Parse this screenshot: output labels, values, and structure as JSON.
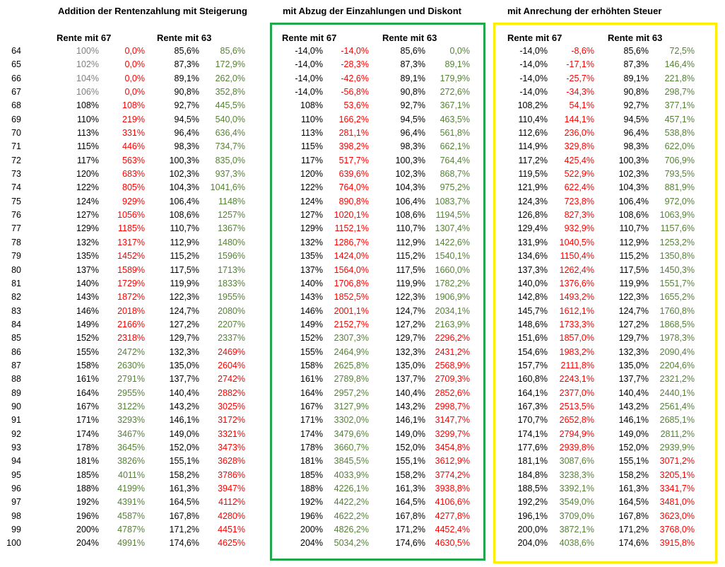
{
  "titles": {
    "section1": "Addition der Rentenzahlung mit Steigerung",
    "section2": "mit Abzug der Einzahlungen und Diskont",
    "section3": "mit Anrechung der erhöhten Steuer"
  },
  "headers": {
    "s1_r67": "Rente mit 67",
    "s1_r63": "Rente mit 63",
    "s2_r67": "Rente mit 67",
    "s2_r63": "Rente mit 63",
    "s3_r67": "Rente mit 67",
    "s3_r63": "Rente mit 63"
  },
  "colors": {
    "red": "#ff0000",
    "green": "#548235",
    "gray": "#808080",
    "black": "#000000",
    "greenBox": "#21a84a",
    "yellowBox": "#ffee00"
  },
  "rows": [
    [
      "64",
      "100%",
      "0,0%",
      "85,6%",
      "85,6%",
      "-14,0%",
      "-14,0%",
      "85,6%",
      "0,0%",
      "-14,0%",
      "-8,6%",
      "85,6%",
      "72,5%"
    ],
    [
      "65",
      "102%",
      "0,0%",
      "87,3%",
      "172,9%",
      "-14,0%",
      "-28,3%",
      "87,3%",
      "89,1%",
      "-14,0%",
      "-17,1%",
      "87,3%",
      "146,4%"
    ],
    [
      "66",
      "104%",
      "0,0%",
      "89,1%",
      "262,0%",
      "-14,0%",
      "-42,6%",
      "89,1%",
      "179,9%",
      "-14,0%",
      "-25,7%",
      "89,1%",
      "221,8%"
    ],
    [
      "67",
      "106%",
      "0,0%",
      "90,8%",
      "352,8%",
      "-14,0%",
      "-56,8%",
      "90,8%",
      "272,6%",
      "-14,0%",
      "-34,3%",
      "90,8%",
      "298,7%"
    ],
    [
      "68",
      "108%",
      "108%",
      "92,7%",
      "445,5%",
      "108%",
      "53,6%",
      "92,7%",
      "367,1%",
      "108,2%",
      "54,1%",
      "92,7%",
      "377,1%"
    ],
    [
      "69",
      "110%",
      "219%",
      "94,5%",
      "540,0%",
      "110%",
      "166,2%",
      "94,5%",
      "463,5%",
      "110,4%",
      "144,1%",
      "94,5%",
      "457,1%"
    ],
    [
      "70",
      "113%",
      "331%",
      "96,4%",
      "636,4%",
      "113%",
      "281,1%",
      "96,4%",
      "561,8%",
      "112,6%",
      "236,0%",
      "96,4%",
      "538,8%"
    ],
    [
      "71",
      "115%",
      "446%",
      "98,3%",
      "734,7%",
      "115%",
      "398,2%",
      "98,3%",
      "662,1%",
      "114,9%",
      "329,8%",
      "98,3%",
      "622,0%"
    ],
    [
      "72",
      "117%",
      "563%",
      "100,3%",
      "835,0%",
      "117%",
      "517,7%",
      "100,3%",
      "764,4%",
      "117,2%",
      "425,4%",
      "100,3%",
      "706,9%"
    ],
    [
      "73",
      "120%",
      "683%",
      "102,3%",
      "937,3%",
      "120%",
      "639,6%",
      "102,3%",
      "868,7%",
      "119,5%",
      "522,9%",
      "102,3%",
      "793,5%"
    ],
    [
      "74",
      "122%",
      "805%",
      "104,3%",
      "1041,6%",
      "122%",
      "764,0%",
      "104,3%",
      "975,2%",
      "121,9%",
      "622,4%",
      "104,3%",
      "881,9%"
    ],
    [
      "75",
      "124%",
      "929%",
      "106,4%",
      "1148%",
      "124%",
      "890,8%",
      "106,4%",
      "1083,7%",
      "124,3%",
      "723,8%",
      "106,4%",
      "972,0%"
    ],
    [
      "76",
      "127%",
      "1056%",
      "108,6%",
      "1257%",
      "127%",
      "1020,1%",
      "108,6%",
      "1194,5%",
      "126,8%",
      "827,3%",
      "108,6%",
      "1063,9%"
    ],
    [
      "77",
      "129%",
      "1185%",
      "110,7%",
      "1367%",
      "129%",
      "1152,1%",
      "110,7%",
      "1307,4%",
      "129,4%",
      "932,9%",
      "110,7%",
      "1157,6%"
    ],
    [
      "78",
      "132%",
      "1317%",
      "112,9%",
      "1480%",
      "132%",
      "1286,7%",
      "112,9%",
      "1422,6%",
      "131,9%",
      "1040,5%",
      "112,9%",
      "1253,2%"
    ],
    [
      "79",
      "135%",
      "1452%",
      "115,2%",
      "1596%",
      "135%",
      "1424,0%",
      "115,2%",
      "1540,1%",
      "134,6%",
      "1150,4%",
      "115,2%",
      "1350,8%"
    ],
    [
      "80",
      "137%",
      "1589%",
      "117,5%",
      "1713%",
      "137%",
      "1564,0%",
      "117,5%",
      "1660,0%",
      "137,3%",
      "1262,4%",
      "117,5%",
      "1450,3%"
    ],
    [
      "81",
      "140%",
      "1729%",
      "119,9%",
      "1833%",
      "140%",
      "1706,8%",
      "119,9%",
      "1782,2%",
      "140,0%",
      "1376,6%",
      "119,9%",
      "1551,7%"
    ],
    [
      "82",
      "143%",
      "1872%",
      "122,3%",
      "1955%",
      "143%",
      "1852,5%",
      "122,3%",
      "1906,9%",
      "142,8%",
      "1493,2%",
      "122,3%",
      "1655,2%"
    ],
    [
      "83",
      "146%",
      "2018%",
      "124,7%",
      "2080%",
      "146%",
      "2001,1%",
      "124,7%",
      "2034,1%",
      "145,7%",
      "1612,1%",
      "124,7%",
      "1760,8%"
    ],
    [
      "84",
      "149%",
      "2166%",
      "127,2%",
      "2207%",
      "149%",
      "2152,7%",
      "127,2%",
      "2163,9%",
      "148,6%",
      "1733,3%",
      "127,2%",
      "1868,5%"
    ],
    [
      "85",
      "152%",
      "2318%",
      "129,7%",
      "2337%",
      "152%",
      "2307,3%",
      "129,7%",
      "2296,2%",
      "151,6%",
      "1857,0%",
      "129,7%",
      "1978,3%"
    ],
    [
      "86",
      "155%",
      "2472%",
      "132,3%",
      "2469%",
      "155%",
      "2464,9%",
      "132,3%",
      "2431,2%",
      "154,6%",
      "1983,2%",
      "132,3%",
      "2090,4%"
    ],
    [
      "87",
      "158%",
      "2630%",
      "135,0%",
      "2604%",
      "158%",
      "2625,8%",
      "135,0%",
      "2568,9%",
      "157,7%",
      "2111,8%",
      "135,0%",
      "2204,6%"
    ],
    [
      "88",
      "161%",
      "2791%",
      "137,7%",
      "2742%",
      "161%",
      "2789,8%",
      "137,7%",
      "2709,3%",
      "160,8%",
      "2243,1%",
      "137,7%",
      "2321,2%"
    ],
    [
      "89",
      "164%",
      "2955%",
      "140,4%",
      "2882%",
      "164%",
      "2957,2%",
      "140,4%",
      "2852,6%",
      "164,1%",
      "2377,0%",
      "140,4%",
      "2440,1%"
    ],
    [
      "90",
      "167%",
      "3122%",
      "143,2%",
      "3025%",
      "167%",
      "3127,9%",
      "143,2%",
      "2998,7%",
      "167,3%",
      "2513,5%",
      "143,2%",
      "2561,4%"
    ],
    [
      "91",
      "171%",
      "3293%",
      "146,1%",
      "3172%",
      "171%",
      "3302,0%",
      "146,1%",
      "3147,7%",
      "170,7%",
      "2652,8%",
      "146,1%",
      "2685,1%"
    ],
    [
      "92",
      "174%",
      "3467%",
      "149,0%",
      "3321%",
      "174%",
      "3479,6%",
      "149,0%",
      "3299,7%",
      "174,1%",
      "2794,9%",
      "149,0%",
      "2811,2%"
    ],
    [
      "93",
      "178%",
      "3645%",
      "152,0%",
      "3473%",
      "178%",
      "3660,7%",
      "152,0%",
      "3454,8%",
      "177,6%",
      "2939,8%",
      "152,0%",
      "2939,9%"
    ],
    [
      "94",
      "181%",
      "3826%",
      "155,1%",
      "3628%",
      "181%",
      "3845,5%",
      "155,1%",
      "3612,9%",
      "181,1%",
      "3087,6%",
      "155,1%",
      "3071,2%"
    ],
    [
      "95",
      "185%",
      "4011%",
      "158,2%",
      "3786%",
      "185%",
      "4033,9%",
      "158,2%",
      "3774,2%",
      "184,8%",
      "3238,3%",
      "158,2%",
      "3205,1%"
    ],
    [
      "96",
      "188%",
      "4199%",
      "161,3%",
      "3947%",
      "188%",
      "4226,1%",
      "161,3%",
      "3938,8%",
      "188,5%",
      "3392,1%",
      "161,3%",
      "3341,7%"
    ],
    [
      "97",
      "192%",
      "4391%",
      "164,5%",
      "4112%",
      "192%",
      "4422,2%",
      "164,5%",
      "4106,6%",
      "192,2%",
      "3549,0%",
      "164,5%",
      "3481,0%"
    ],
    [
      "98",
      "196%",
      "4587%",
      "167,8%",
      "4280%",
      "196%",
      "4622,2%",
      "167,8%",
      "4277,8%",
      "196,1%",
      "3709,0%",
      "167,8%",
      "3623,0%"
    ],
    [
      "99",
      "200%",
      "4787%",
      "171,2%",
      "4451%",
      "200%",
      "4826,2%",
      "171,2%",
      "4452,4%",
      "200,0%",
      "3872,1%",
      "171,2%",
      "3768,0%"
    ],
    [
      "100",
      "204%",
      "4991%",
      "174,6%",
      "4625%",
      "204%",
      "5034,2%",
      "174,6%",
      "4630,5%",
      "204,0%",
      "4038,6%",
      "174,6%",
      "3915,8%"
    ]
  ]
}
